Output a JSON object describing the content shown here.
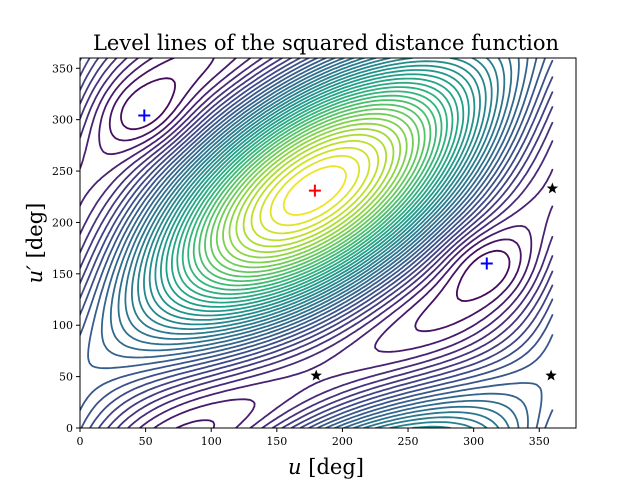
{
  "chart_data": {
    "type": "contour",
    "title": "Level lines of the squared distance function",
    "xlabel_var": "u",
    "xlabel_unit": "[deg]",
    "ylabel_var": "u′",
    "ylabel_unit": "[deg]",
    "xlim": [
      0,
      378
    ],
    "ylim": [
      0,
      360
    ],
    "xticks": [
      0,
      50,
      100,
      150,
      200,
      250,
      300,
      350
    ],
    "yticks": [
      0,
      50,
      100,
      150,
      200,
      250,
      300,
      350
    ],
    "colormap": "viridis",
    "contour_domain": {
      "x": [
        0,
        360
      ],
      "y": [
        0,
        360
      ]
    },
    "contour_levels": 40,
    "grid": false,
    "markers": [
      {
        "kind": "plus",
        "color": "#ff0000",
        "x": 179,
        "y": 231,
        "name": "maximum"
      },
      {
        "kind": "plus",
        "color": "#0000ff",
        "x": 49,
        "y": 304,
        "name": "minimum"
      },
      {
        "kind": "plus",
        "color": "#0000ff",
        "x": 310,
        "y": 160,
        "name": "minimum"
      },
      {
        "kind": "star",
        "color": "#000000",
        "x": 180,
        "y": 51,
        "name": "saddle"
      },
      {
        "kind": "star",
        "color": "#000000",
        "x": 359,
        "y": 51,
        "name": "saddle"
      },
      {
        "kind": "star",
        "color": "#000000",
        "x": 360,
        "y": 233,
        "name": "saddle"
      }
    ]
  }
}
